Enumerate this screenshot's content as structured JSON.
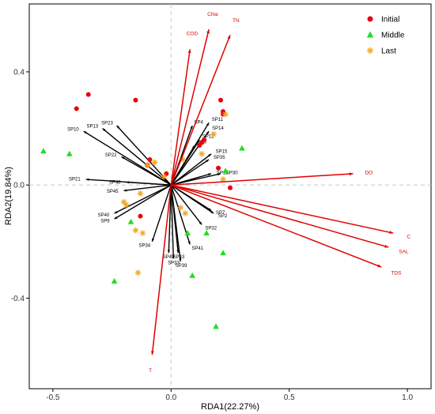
{
  "chart_data": {
    "type": "scatter",
    "subtype": "RDA biplot",
    "xlabel": "RDA1(22.27%)",
    "ylabel": "RDA2(19.84%)",
    "xlim": [
      -0.6,
      1.1
    ],
    "ylim": [
      -0.72,
      0.64
    ],
    "xticks": [
      -0.5,
      0.0,
      0.5,
      1.0
    ],
    "xtick_labels": [
      "-0.5",
      "0.0",
      "0.5",
      "1.0"
    ],
    "yticks": [
      -0.4,
      0.0,
      0.4
    ],
    "ytick_labels": [
      "-0.4",
      "0.0",
      "0.4"
    ],
    "grid": false,
    "reference_lines": "dashed at x=0 and y=0",
    "legend_position": "top-right",
    "legend": [
      {
        "name": "Initial",
        "color": "#e8000b",
        "marker": "circle"
      },
      {
        "name": "Middle",
        "color": "#22dd22",
        "marker": "triangle"
      },
      {
        "name": "Last",
        "color": "#f5a623",
        "marker": "asterisk"
      }
    ],
    "env_vectors": [
      {
        "label": "Chla",
        "x": 0.16,
        "y": 0.55
      },
      {
        "label": "TN",
        "x": 0.25,
        "y": 0.53
      },
      {
        "label": "COD",
        "x": 0.08,
        "y": 0.48
      },
      {
        "label": "DO",
        "x": 0.77,
        "y": 0.04
      },
      {
        "label": "C",
        "x": 0.94,
        "y": -0.17
      },
      {
        "label": "SAL",
        "x": 0.92,
        "y": -0.22
      },
      {
        "label": "TDS",
        "x": 0.89,
        "y": -0.29
      },
      {
        "label": "T",
        "x": -0.08,
        "y": -0.6
      }
    ],
    "species_vectors": [
      {
        "label": "SP10",
        "x": -0.37,
        "y": 0.19
      },
      {
        "label": "SP13",
        "x": -0.29,
        "y": 0.2
      },
      {
        "label": "SP23",
        "x": -0.23,
        "y": 0.21
      },
      {
        "label": "SP22",
        "x": -0.21,
        "y": 0.1
      },
      {
        "label": "SP21",
        "x": -0.36,
        "y": 0.02
      },
      {
        "label": "SP48",
        "x": -0.19,
        "y": 0.01
      },
      {
        "label": "SP45",
        "x": -0.2,
        "y": -0.02
      },
      {
        "label": "SP40",
        "x": -0.24,
        "y": -0.1
      },
      {
        "label": "SP9",
        "x": -0.24,
        "y": -0.12
      },
      {
        "label": "SP34",
        "x": -0.08,
        "y": -0.2
      },
      {
        "label": "SP42",
        "x": -0.01,
        "y": -0.24
      },
      {
        "label": "SP33",
        "x": 0.01,
        "y": -0.26
      },
      {
        "label": "SP39",
        "x": 0.04,
        "y": -0.27
      },
      {
        "label": "SP43",
        "x": 0.03,
        "y": -0.24
      },
      {
        "label": "SP41",
        "x": 0.08,
        "y": -0.21
      },
      {
        "label": "SP32",
        "x": 0.13,
        "y": -0.14
      },
      {
        "label": "SP2",
        "x": 0.18,
        "y": -0.1
      },
      {
        "label": "SP7",
        "x": 0.17,
        "y": -0.09
      },
      {
        "label": "SP4",
        "x": 0.09,
        "y": 0.21
      },
      {
        "label": "SP11",
        "x": 0.16,
        "y": 0.22
      },
      {
        "label": "SP14",
        "x": 0.16,
        "y": 0.19
      },
      {
        "label": "SP12",
        "x": 0.12,
        "y": 0.16
      },
      {
        "label": "SP3",
        "x": 0.1,
        "y": 0.14
      },
      {
        "label": "SP15",
        "x": 0.17,
        "y": 0.11
      },
      {
        "label": "SP35",
        "x": 0.16,
        "y": 0.09
      },
      {
        "label": "SP16",
        "x": 0.17,
        "y": 0.04
      },
      {
        "label": "SP30",
        "x": 0.21,
        "y": 0.04
      }
    ],
    "series": [
      {
        "name": "Initial",
        "points": [
          [
            -0.35,
            0.32
          ],
          [
            -0.4,
            0.27
          ],
          [
            -0.15,
            0.3
          ],
          [
            0.21,
            0.3
          ],
          [
            0.22,
            0.26
          ],
          [
            0.22,
            0.25
          ],
          [
            0.12,
            0.14
          ],
          [
            0.13,
            0.15
          ],
          [
            0.14,
            0.16
          ],
          [
            0.2,
            0.06
          ],
          [
            -0.09,
            0.09
          ],
          [
            -0.1,
            0.07
          ],
          [
            -0.02,
            0.04
          ],
          [
            0.25,
            -0.01
          ],
          [
            -0.13,
            -0.11
          ]
        ]
      },
      {
        "name": "Middle",
        "points": [
          [
            -0.54,
            0.12
          ],
          [
            -0.43,
            0.11
          ],
          [
            0.3,
            0.13
          ],
          [
            0.23,
            0.05
          ],
          [
            0.22,
            -0.24
          ],
          [
            0.15,
            -0.17
          ],
          [
            0.07,
            -0.17
          ],
          [
            0.09,
            -0.32
          ],
          [
            -0.24,
            -0.34
          ],
          [
            0.19,
            -0.5
          ],
          [
            -0.17,
            -0.13
          ]
        ]
      },
      {
        "name": "Last",
        "points": [
          [
            -0.19,
            -0.07
          ],
          [
            -0.2,
            -0.06
          ],
          [
            -0.13,
            -0.03
          ],
          [
            -0.07,
            0.08
          ],
          [
            0.05,
            0.09
          ],
          [
            -0.1,
            0.07
          ],
          [
            -0.03,
            0.03
          ],
          [
            -0.15,
            -0.16
          ],
          [
            -0.12,
            -0.17
          ],
          [
            -0.14,
            -0.31
          ],
          [
            0.06,
            -0.1
          ],
          [
            0.04,
            -0.08
          ],
          [
            0.23,
            0.25
          ],
          [
            0.22,
            0.02
          ],
          [
            0.18,
            0.18
          ],
          [
            0.13,
            0.11
          ]
        ]
      }
    ]
  }
}
